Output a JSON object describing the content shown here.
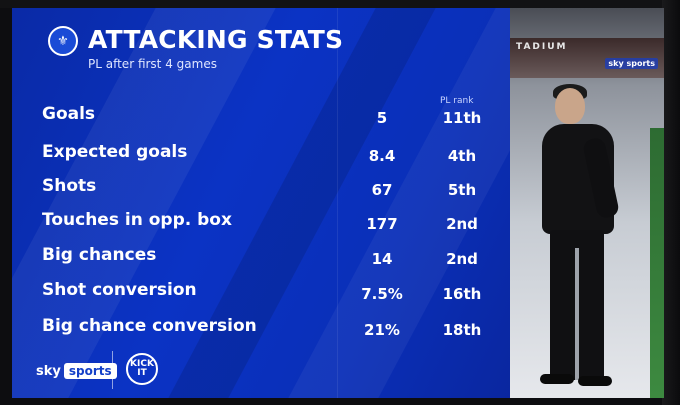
{
  "header": {
    "title": "ATTACKING STATS",
    "subtitle": "PL after first 4 games",
    "badge_icon": "chelsea-crest-icon"
  },
  "table": {
    "rank_header": "PL rank",
    "rows": [
      {
        "label": "Goals",
        "value": "5",
        "rank": "11th"
      },
      {
        "label": "Expected goals",
        "value": "8.4",
        "rank": "4th"
      },
      {
        "label": "Shots",
        "value": "67",
        "rank": "5th"
      },
      {
        "label": "Touches in opp. box",
        "value": "177",
        "rank": "2nd"
      },
      {
        "label": "Big chances",
        "value": "14",
        "rank": "2nd"
      },
      {
        "label": "Shot conversion",
        "value": "7.5%",
        "rank": "16th"
      },
      {
        "label": "Big chance conversion",
        "value": "21%",
        "rank": "18th"
      }
    ]
  },
  "footer": {
    "sky_text": "sky",
    "sports_text": "sports",
    "kickit_text": "KICK IT"
  },
  "photo": {
    "stadium_text": "TADIUM",
    "sky_mini": "sky sports"
  },
  "colors": {
    "background_blue": "#0b33c4",
    "text_white": "#ffffff"
  }
}
